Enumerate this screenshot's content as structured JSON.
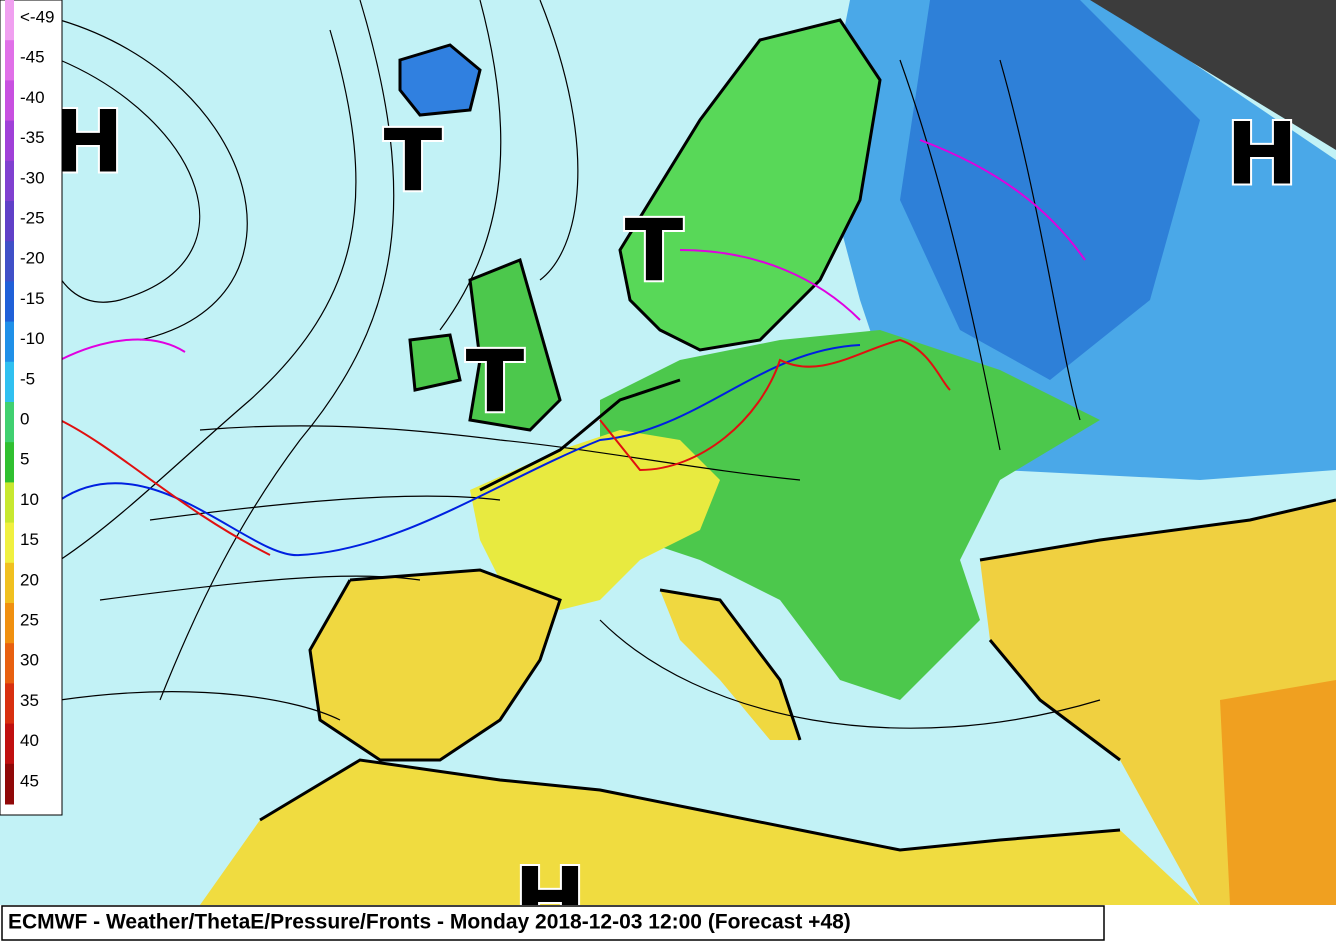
{
  "map": {
    "pressure_centers": [
      "H",
      "T",
      "T",
      "T",
      "H",
      "H"
    ],
    "colorbar": {
      "labels": [
        "<-49",
        -45,
        -40,
        -35,
        -30,
        -25,
        -20,
        -15,
        -10,
        -5,
        0,
        5,
        10,
        15,
        20,
        25,
        30,
        35,
        40,
        45
      ],
      "colors": [
        "#f0a0f0",
        "#e070e8",
        "#c850e0",
        "#a040d8",
        "#8040d0",
        "#6040c8",
        "#4050c8",
        "#2060d8",
        "#2090e8",
        "#30c0f0",
        "#40d070",
        "#30c030",
        "#c8e830",
        "#f0f040",
        "#f0c020",
        "#f09010",
        "#e86010",
        "#d83010",
        "#c01010",
        "#900808"
      ]
    },
    "footer": "ECMWF - Weather/ThetaE/Pressure/Fronts - Monday 2018-12-03 12:00 (Forecast +48)"
  }
}
